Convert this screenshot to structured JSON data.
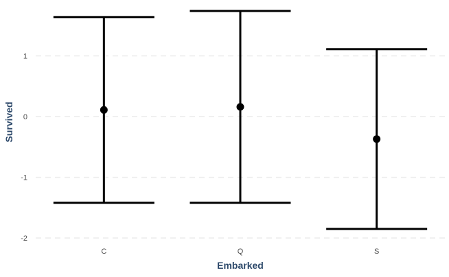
{
  "chart_data": {
    "type": "errorbar",
    "xlabel": "Embarked",
    "ylabel": "Survived",
    "categories": [
      "C",
      "Q",
      "S"
    ],
    "points": [
      {
        "category": "C",
        "y": 0.11,
        "ymin": -1.42,
        "ymax": 1.64
      },
      {
        "category": "Q",
        "y": 0.16,
        "ymin": -1.42,
        "ymax": 1.74
      },
      {
        "category": "S",
        "y": -0.37,
        "ymin": -1.85,
        "ymax": 1.11
      }
    ],
    "yticks": [
      -2,
      -1,
      0,
      1
    ],
    "ylim": [
      -2.1,
      1.83
    ],
    "grid": true,
    "colors": {
      "marks": "#000000",
      "axis_title": "#2e4a6b",
      "tick": "#4d4d4d",
      "grid": "#ebebeb"
    }
  }
}
